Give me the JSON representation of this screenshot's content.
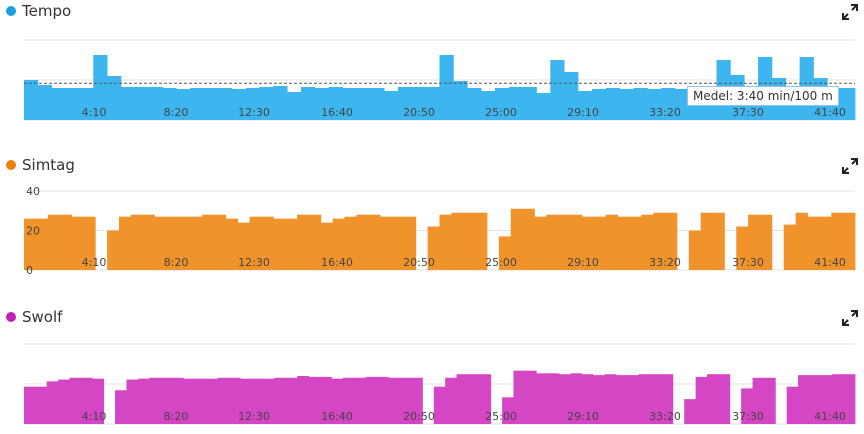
{
  "chart_data": [
    {
      "type": "bar",
      "title": "Tempo",
      "color": "#3db6ef",
      "x_ticks": [
        "4:10",
        "8:20",
        "12:30",
        "16:40",
        "20:50",
        "25:00",
        "29:10",
        "33:20",
        "37:30",
        "41:40"
      ],
      "y_tick_labels": [],
      "average_label": "Medel: 3:40 min/100 m",
      "average_value": 3.67,
      "ylim": [
        0,
        8
      ],
      "series": [
        {
          "values": [
            4.0,
            3.5,
            3.2,
            3.2,
            3.2,
            6.5,
            4.4,
            3.3,
            3.3,
            3.3,
            3.2,
            3.1,
            3.2,
            3.2,
            3.2,
            3.1,
            3.2,
            3.3,
            3.4,
            2.8,
            3.3,
            3.2,
            3.3,
            3.2,
            3.2,
            3.2,
            2.9,
            3.3,
            3.3,
            3.3,
            6.5,
            3.9,
            3.2,
            2.9,
            3.2,
            3.3,
            3.3,
            2.7,
            6.0,
            4.8,
            2.9,
            3.1,
            3.2,
            3.1,
            3.2,
            3.1,
            3.2,
            3.1,
            3.2,
            2.9,
            6.0,
            4.5,
            2.9,
            6.3,
            4.2,
            3.0,
            6.3,
            4.2,
            3.2,
            3.2
          ]
        }
      ]
    },
    {
      "type": "bar",
      "title": "Simtag",
      "color": "#f0932b",
      "x_ticks": [
        "4:10",
        "8:20",
        "12:30",
        "16:40",
        "20:50",
        "25:00",
        "29:10",
        "33:20",
        "37:30",
        "41:40"
      ],
      "y_tick_labels": [
        "0",
        "20",
        "40"
      ],
      "ylim": [
        0,
        40
      ],
      "series": [
        {
          "values": [
            26,
            26,
            28,
            28,
            27,
            27,
            0,
            20,
            27,
            28,
            28,
            27,
            27,
            27,
            27,
            28,
            28,
            26,
            24,
            27,
            27,
            26,
            26,
            28,
            28,
            24,
            26,
            27,
            28,
            28,
            27,
            27,
            27,
            0,
            22,
            28,
            29,
            29,
            29,
            0,
            17,
            31,
            31,
            27,
            28,
            28,
            28,
            27,
            27,
            28,
            27,
            27,
            28,
            29,
            29,
            0,
            20,
            29,
            29,
            0,
            22,
            28,
            28,
            0,
            23,
            29,
            27,
            27,
            29,
            29
          ]
        }
      ]
    },
    {
      "type": "bar",
      "title": "Swolf",
      "color": "#d446c4",
      "x_ticks": [
        "4:10",
        "8:20",
        "12:30",
        "16:40",
        "20:50",
        "25:00",
        "29:10",
        "33:20",
        "37:30",
        "41:40"
      ],
      "y_tick_labels": [],
      "ylim": [
        0,
        90
      ],
      "series": [
        {
          "values": [
            42,
            42,
            48,
            50,
            52,
            52,
            51,
            0,
            38,
            50,
            51,
            52,
            52,
            52,
            51,
            51,
            51,
            52,
            52,
            51,
            51,
            51,
            52,
            52,
            54,
            53,
            53,
            51,
            52,
            52,
            53,
            53,
            52,
            52,
            52,
            0,
            42,
            52,
            56,
            56,
            56,
            0,
            30,
            60,
            60,
            57,
            57,
            56,
            57,
            56,
            55,
            56,
            55,
            55,
            56,
            56,
            56,
            0,
            28,
            53,
            56,
            56,
            0,
            40,
            52,
            52,
            0,
            42,
            55,
            55,
            55,
            56,
            56
          ]
        }
      ]
    }
  ]
}
